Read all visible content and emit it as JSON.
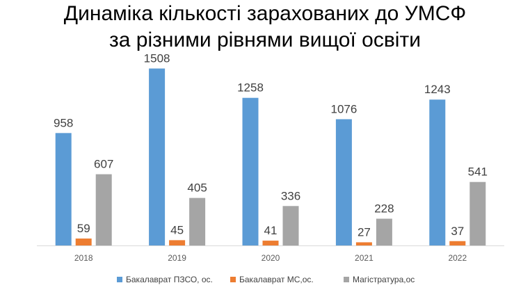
{
  "title_line1": "Динаміка кількості зарахованих до УМСФ",
  "title_line2": "за різними рівнями вищої освіти",
  "chart_data": {
    "type": "bar",
    "categories": [
      "2018",
      "2019",
      "2020",
      "2021",
      "2022"
    ],
    "series": [
      {
        "name": "Бакалаврат ПЗСО, ос.",
        "values": [
          958,
          1508,
          1258,
          1076,
          1243
        ],
        "color": "#5B9BD5"
      },
      {
        "name": "Бакалаврат МС,ос.",
        "values": [
          59,
          45,
          41,
          27,
          37
        ],
        "color": "#ED7D31"
      },
      {
        "name": "Магістратура,ос",
        "values": [
          607,
          405,
          336,
          228,
          541
        ],
        "color": "#A5A5A5"
      }
    ],
    "ylim": [
      0,
      1600
    ],
    "grid": false,
    "legend_position": "bottom",
    "data_labels": true
  }
}
